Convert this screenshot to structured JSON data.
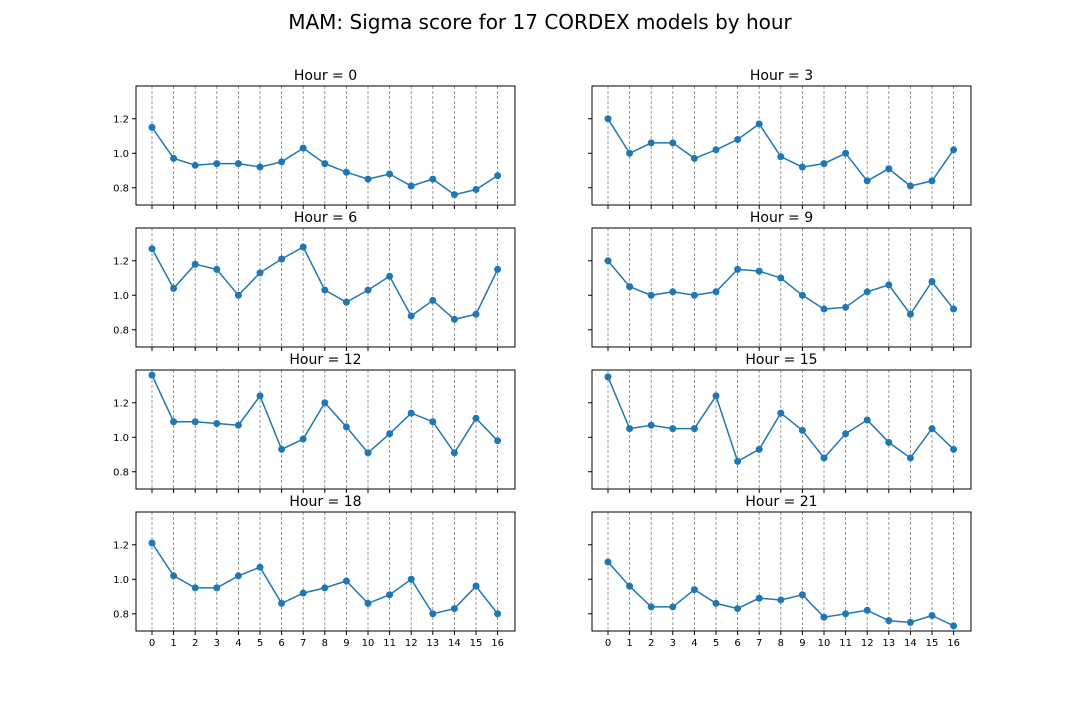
{
  "figure": {
    "title": "MAM: Sigma score for 17 CORDEX models by hour"
  },
  "chart_data": {
    "type": "line",
    "title": "MAM: Sigma score for 17 CORDEX models by hour",
    "layout": "4x2 grid of subplots, shared x and y axes",
    "x": [
      0,
      1,
      2,
      3,
      4,
      5,
      6,
      7,
      8,
      9,
      10,
      11,
      12,
      13,
      14,
      15,
      16
    ],
    "xticklabels": [
      "0",
      "1",
      "2",
      "3",
      "4",
      "5",
      "6",
      "7",
      "8",
      "9",
      "10",
      "11",
      "12",
      "13",
      "14",
      "15",
      "16"
    ],
    "ylim": [
      0.7,
      1.39
    ],
    "yticks": [
      0.8,
      1.0,
      1.2
    ],
    "yticklabels": [
      "0.8",
      "1.0",
      "1.2"
    ],
    "grid": "vertical dashed gray lines at each x tick",
    "marker": "circle",
    "color": "#1f77b4",
    "panels": [
      {
        "title": "Hour = 0",
        "values": [
          1.15,
          0.97,
          0.93,
          0.94,
          0.94,
          0.92,
          0.95,
          1.03,
          0.94,
          0.89,
          0.85,
          0.88,
          0.81,
          0.85,
          0.76,
          0.79,
          0.87
        ]
      },
      {
        "title": "Hour = 3",
        "values": [
          1.2,
          1.0,
          1.06,
          1.06,
          0.97,
          1.02,
          1.08,
          1.17,
          0.98,
          0.92,
          0.94,
          1.0,
          0.84,
          0.91,
          0.81,
          0.84,
          1.02
        ]
      },
      {
        "title": "Hour = 6",
        "values": [
          1.27,
          1.04,
          1.18,
          1.15,
          1.0,
          1.13,
          1.21,
          1.28,
          1.03,
          0.96,
          1.03,
          1.11,
          0.88,
          0.97,
          0.86,
          0.89,
          1.15
        ]
      },
      {
        "title": "Hour = 9",
        "values": [
          1.2,
          1.05,
          1.0,
          1.02,
          1.0,
          1.02,
          1.15,
          1.14,
          1.1,
          1.0,
          0.92,
          0.93,
          1.02,
          1.06,
          0.89,
          1.08,
          0.92
        ]
      },
      {
        "title": "Hour = 12",
        "values": [
          1.36,
          1.09,
          1.09,
          1.08,
          1.07,
          1.24,
          0.93,
          0.99,
          1.2,
          1.06,
          0.91,
          1.02,
          1.14,
          1.09,
          0.91,
          1.11,
          0.98
        ]
      },
      {
        "title": "Hour = 15",
        "values": [
          1.35,
          1.05,
          1.07,
          1.05,
          1.05,
          1.24,
          0.86,
          0.93,
          1.14,
          1.04,
          0.88,
          1.02,
          1.1,
          0.97,
          0.88,
          1.05,
          0.93
        ]
      },
      {
        "title": "Hour = 18",
        "values": [
          1.21,
          1.02,
          0.95,
          0.95,
          1.02,
          1.07,
          0.86,
          0.92,
          0.95,
          0.99,
          0.86,
          0.91,
          1.0,
          0.8,
          0.83,
          0.96,
          0.8
        ]
      },
      {
        "title": "Hour = 21",
        "values": [
          1.1,
          0.96,
          0.84,
          0.84,
          0.94,
          0.86,
          0.83,
          0.89,
          0.88,
          0.91,
          0.78,
          0.8,
          0.82,
          0.76,
          0.75,
          0.79,
          0.73
        ]
      }
    ]
  }
}
